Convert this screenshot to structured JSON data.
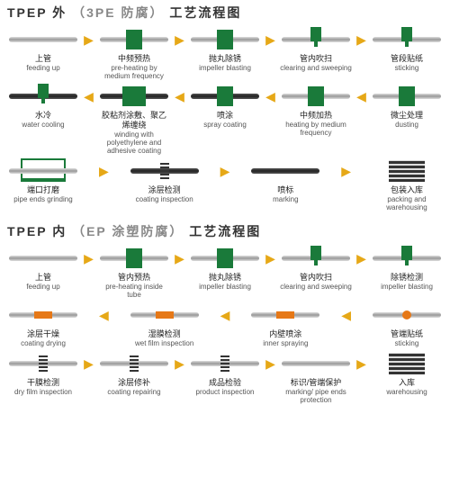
{
  "colors": {
    "green": "#1a7a3a",
    "orange": "#e67817",
    "arrow": "#e6a817",
    "text_cn": "#222",
    "text_en": "#555",
    "gray": "#888"
  },
  "fonts": {
    "title": 14,
    "cn": 9,
    "en": 8
  },
  "sections": [
    {
      "title_parts": [
        "TPEP 外",
        "（3PE 防腐）",
        "工艺流程图"
      ],
      "rows": [
        {
          "dir": "right",
          "steps": [
            {
              "cn": "上管",
              "en": "feeding up",
              "ic": "pipe"
            },
            {
              "cn": "中频预热",
              "en": "pre-heating by medium frequency",
              "ic": "block"
            },
            {
              "cn": "抛丸除锈",
              "en": "impeller blasting",
              "ic": "block"
            },
            {
              "cn": "管内吹扫",
              "en": "clearing and sweeping",
              "ic": "nozzle"
            },
            {
              "cn": "管段贴纸",
              "en": "sticking",
              "ic": "nozzle"
            }
          ]
        },
        {
          "dir": "left",
          "steps": [
            {
              "cn": "水冷",
              "en": "water cooling",
              "ic": "nozzle-dark"
            },
            {
              "cn": "胶粘剂涂敷、聚乙烯缠绕",
              "en": "winding with polyethylene and adhesive coating",
              "ic": "block-wide-dark"
            },
            {
              "cn": "喷涂",
              "en": "spray coating",
              "ic": "block-dark"
            },
            {
              "cn": "中频加热",
              "en": "heating by medium frequency",
              "ic": "block"
            },
            {
              "cn": "微尘处理",
              "en": "dusting",
              "ic": "block"
            }
          ]
        },
        {
          "dir": "right",
          "steps": [
            {
              "cn": "端口打磨",
              "en": "pipe ends grinding",
              "ic": "rack"
            },
            {
              "cn": "涂层检测",
              "en": "coating inspection",
              "ic": "spring-dark"
            },
            {
              "cn": "喷标",
              "en": "marking",
              "ic": "dark"
            },
            {
              "cn": "包装入库",
              "en": "packing and warehousing",
              "ic": "stack"
            }
          ]
        }
      ]
    },
    {
      "title_parts": [
        "TPEP 内",
        "（EP 涂塑防腐）",
        "工艺流程图"
      ],
      "rows": [
        {
          "dir": "right",
          "steps": [
            {
              "cn": "上管",
              "en": "feeding up",
              "ic": "pipe"
            },
            {
              "cn": "管内预热",
              "en": "pre-heating inside tube",
              "ic": "block"
            },
            {
              "cn": "抛丸除锈",
              "en": "impeller blasting",
              "ic": "block"
            },
            {
              "cn": "管内吹扫",
              "en": "clearing and sweeping",
              "ic": "nozzle"
            },
            {
              "cn": "除锈检测",
              "en": "impeller blasting",
              "ic": "nozzle"
            }
          ]
        },
        {
          "dir": "left",
          "steps": [
            {
              "cn": "涂层干燥",
              "en": "coating drying",
              "ic": "bar-o"
            },
            {
              "cn": "湿膜检测",
              "en": "wet film inspection",
              "ic": "bar-o"
            },
            {
              "cn": "内壁喷涂",
              "en": "inner spraying",
              "ic": "bar-o"
            },
            {
              "cn": "管端贴纸",
              "en": "sticking",
              "ic": "dot-o"
            }
          ]
        },
        {
          "dir": "right",
          "steps": [
            {
              "cn": "干膜检测",
              "en": "dry film inspection",
              "ic": "spring"
            },
            {
              "cn": "涂层修补",
              "en": "coating repairing",
              "ic": "spring"
            },
            {
              "cn": "成品检验",
              "en": "product inspection",
              "ic": "spring"
            },
            {
              "cn": "标识/管端保护",
              "en": "marking/ pipe ends protection",
              "ic": "pipe"
            },
            {
              "cn": "入库",
              "en": "warehousing",
              "ic": "stack"
            }
          ]
        }
      ]
    }
  ]
}
